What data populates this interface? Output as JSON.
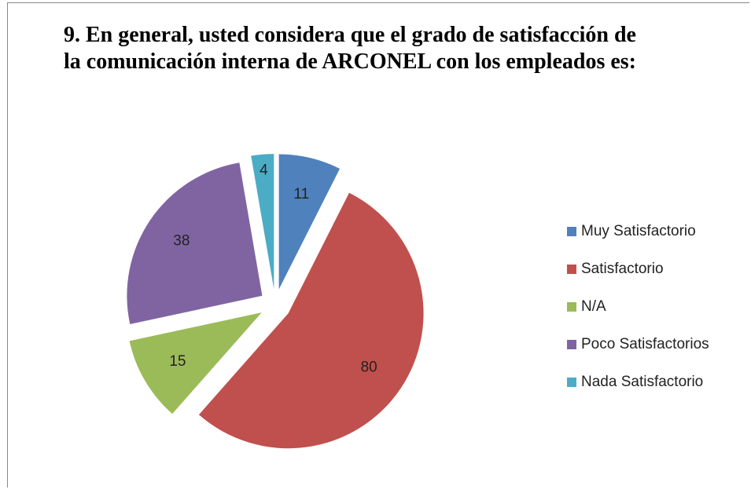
{
  "chart_data": {
    "type": "pie",
    "title": "9. En general, usted considera que el grado de satisfacción de la comunicación interna de ARCONEL con los empleados es:",
    "categories": [
      "Muy Satisfactorio",
      "Satisfactorio",
      "N/A",
      "Poco Satisfactorios",
      "Nada Satisfactorio"
    ],
    "values": [
      11,
      80,
      15,
      38,
      4
    ],
    "colors": [
      "#4f81bd",
      "#c0504d",
      "#9bbb59",
      "#8064a2",
      "#4bacc6"
    ],
    "legend": "right"
  }
}
